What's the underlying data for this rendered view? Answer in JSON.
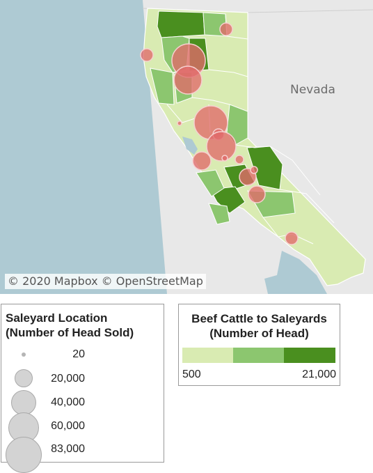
{
  "map": {
    "attribution": "© 2020 Mapbox © OpenStreetMap",
    "state_label": "Nevada",
    "colors": {
      "ocean": "#aecad3",
      "land": "#e9e9e9",
      "border": "#ffffff",
      "tier_low": "#d9ebb2",
      "tier_mid": "#8cc66f",
      "tier_high": "#4a8f1f",
      "bubble_fill": "#e06a6a",
      "bubble_stroke": "#f4c6c6"
    }
  },
  "size_legend": {
    "title_line1": "Saleyard Location",
    "title_line2": "(Number of Head Sold)",
    "items": [
      {
        "label": "20",
        "value": 20
      },
      {
        "label": "20,000",
        "value": 20000
      },
      {
        "label": "40,000",
        "value": 40000
      },
      {
        "label": "60,000",
        "value": 60000
      },
      {
        "label": "83,000",
        "value": 83000
      }
    ]
  },
  "color_legend": {
    "title_line1": "Beef Cattle to Saleyards",
    "title_line2": "(Number of Head)",
    "min_label": "500",
    "max_label": "21,000"
  }
}
